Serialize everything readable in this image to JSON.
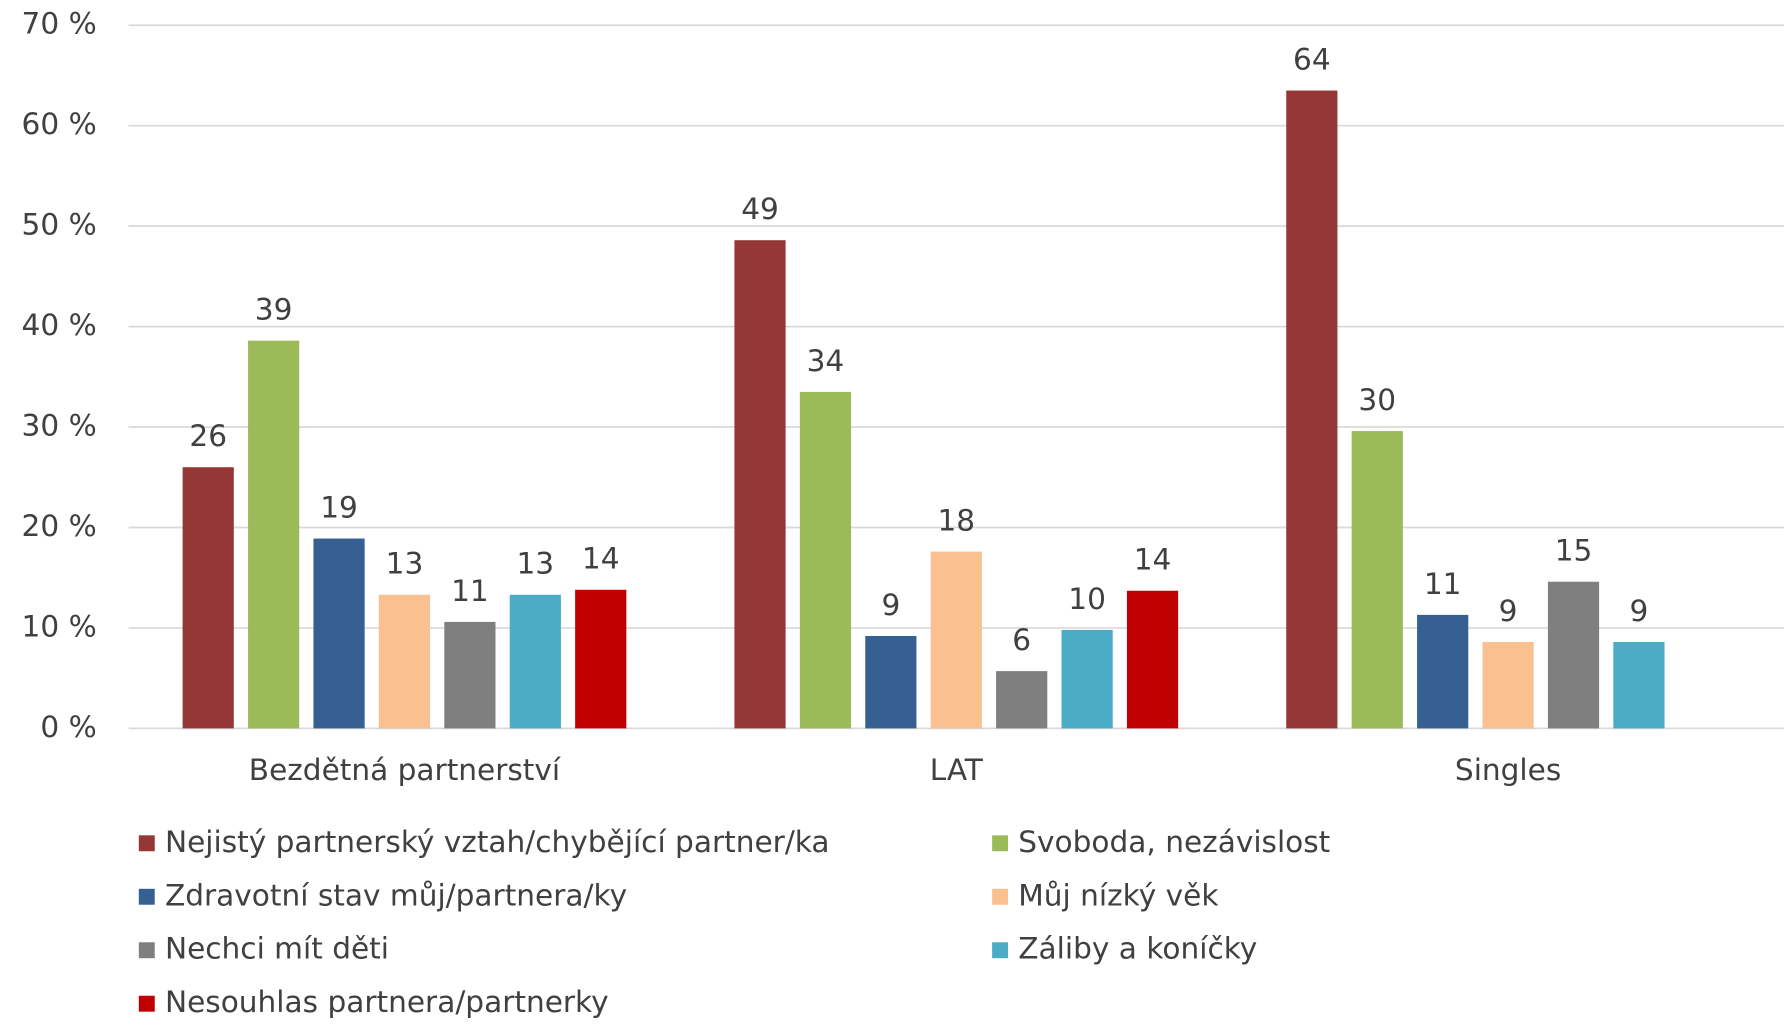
{
  "chart_data": {
    "type": "bar",
    "categories": [
      "Bezdětná partnerství",
      "LAT",
      "Singles"
    ],
    "series": [
      {
        "name": "Nejistý partnerský vztah/chybějící partner/ka",
        "color": "#953735",
        "values": [
          26.0,
          48.6,
          63.5
        ]
      },
      {
        "name": "Svoboda, nezávislost",
        "color": "#9bbb59",
        "values": [
          38.6,
          33.5,
          29.6
        ]
      },
      {
        "name": "Zdravotní stav můj/partnera/ky",
        "color": "#376092",
        "values": [
          18.9,
          9.2,
          11.3
        ]
      },
      {
        "name": "Můj nízký věk",
        "color": "#fac090",
        "values": [
          13.3,
          17.6,
          8.6
        ]
      },
      {
        "name": "Nechci mít děti",
        "color": "#7f7f7f",
        "values": [
          10.6,
          5.7,
          14.6
        ]
      },
      {
        "name": "Záliby a koníčky",
        "color": "#4bacc6",
        "values": [
          13.3,
          9.8,
          8.6
        ]
      },
      {
        "name": "Nesouhlas partnera/partnerky",
        "color": "#c00000",
        "values": [
          13.8,
          13.7,
          null
        ]
      }
    ],
    "ylim": [
      0,
      70
    ],
    "yticks": [
      {
        "value": 0,
        "label": "0 %"
      },
      {
        "value": 10,
        "label": "10 %"
      },
      {
        "value": 20,
        "label": "20 %"
      },
      {
        "value": 30,
        "label": "30 %"
      },
      {
        "value": 40,
        "label": "40 %"
      },
      {
        "value": 50,
        "label": "50 %"
      },
      {
        "value": 60,
        "label": "60 %"
      },
      {
        "value": 70,
        "label": "70 %"
      }
    ],
    "grid": true
  }
}
